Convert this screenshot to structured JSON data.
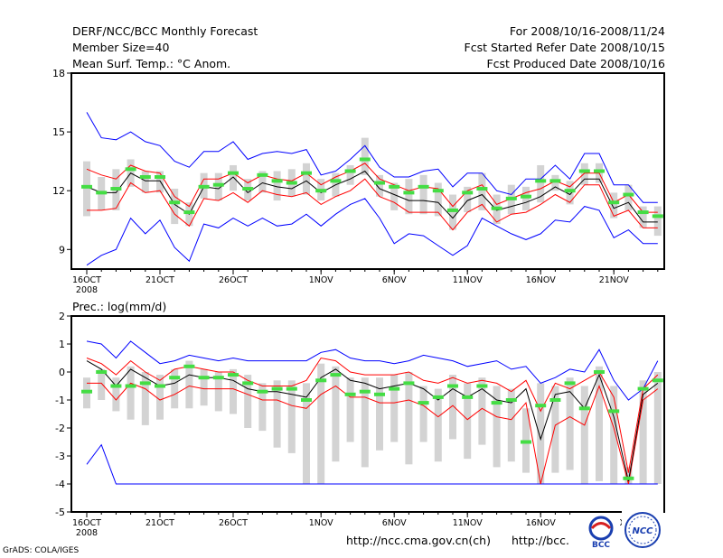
{
  "header": {
    "title": "DERF/NCC/BCC Monthly Forecast",
    "member_size": "Member Size=40",
    "variable": "Mean Surf. Temp.: °C Anom.",
    "period": "For 2008/10/16-2008/11/24",
    "refer_date": "Fcst Started Refer Date 2008/10/15",
    "produced_date": "Fcst Produced Date 2008/10/16"
  },
  "footer": {
    "url1": "http://ncc.cma.gov.cn(ch)",
    "url2": "http://bcc.",
    "grads": "GrADS: COLA/IGES",
    "logo1": "BCC",
    "logo2": "NCC"
  },
  "colors": {
    "envelope": "#0000ff",
    "spread": "#ff0000",
    "mean": "#000000",
    "marker": "#44dd44",
    "box": "#d3d3d3"
  },
  "chart_data": [
    {
      "type": "line",
      "title": "",
      "ylabel": "Mean Surf. Temp.: °C Anom.",
      "ylim": [
        8,
        18
      ],
      "yticks": [
        "9",
        "12",
        "15",
        "18"
      ],
      "day_index": [
        0,
        1,
        2,
        3,
        4,
        5,
        6,
        7,
        8,
        9,
        10,
        11,
        12,
        13,
        14,
        15,
        16,
        17,
        18,
        19,
        20,
        21,
        22,
        23,
        24,
        25,
        26,
        27,
        28,
        29,
        30,
        31,
        32,
        33,
        34,
        35,
        36,
        37,
        38,
        39
      ],
      "xtick_labels": [
        {
          "day": 0,
          "label": "16OCT",
          "sub": "2008"
        },
        {
          "day": 5,
          "label": "21OCT"
        },
        {
          "day": 10,
          "label": "26OCT"
        },
        {
          "day": 16,
          "label": "1NOV"
        },
        {
          "day": 21,
          "label": "6NOV"
        },
        {
          "day": 26,
          "label": "11NOV"
        },
        {
          "day": 31,
          "label": "16NOV"
        },
        {
          "day": 36,
          "label": "21NOV"
        }
      ],
      "series": [
        {
          "name": "max",
          "values": [
            16.0,
            14.7,
            14.6,
            15.0,
            14.5,
            14.3,
            13.5,
            13.2,
            14.0,
            14.0,
            14.5,
            13.6,
            13.9,
            14.0,
            13.9,
            14.1,
            12.8,
            13.0,
            13.6,
            14.3,
            13.2,
            12.7,
            12.7,
            13.0,
            13.1,
            12.2,
            12.9,
            12.9,
            12.0,
            11.8,
            12.6,
            12.6,
            13.3,
            12.6,
            13.9,
            13.9,
            12.3,
            12.3,
            11.4,
            11.4
          ]
        },
        {
          "name": "upper",
          "values": [
            13.1,
            12.8,
            12.6,
            13.3,
            13.0,
            12.9,
            11.7,
            11.2,
            12.6,
            12.6,
            12.9,
            12.4,
            12.8,
            12.6,
            12.5,
            12.9,
            12.3,
            12.7,
            13.0,
            13.4,
            12.6,
            12.3,
            12.0,
            12.2,
            12.1,
            11.2,
            12.0,
            12.3,
            11.3,
            11.6,
            11.9,
            12.1,
            12.5,
            12.2,
            12.9,
            12.9,
            11.4,
            11.8,
            10.9,
            10.9
          ]
        },
        {
          "name": "mean",
          "values": [
            12.2,
            11.9,
            11.9,
            12.9,
            12.5,
            12.5,
            11.3,
            10.8,
            12.2,
            12.1,
            12.7,
            11.9,
            12.4,
            12.2,
            12.1,
            12.5,
            11.9,
            12.3,
            12.6,
            13.0,
            12.1,
            11.8,
            11.5,
            11.5,
            11.4,
            10.6,
            11.5,
            11.8,
            11.0,
            11.2,
            11.4,
            11.7,
            12.2,
            11.8,
            12.6,
            12.6,
            11.1,
            11.4,
            10.4,
            10.4
          ]
        },
        {
          "name": "lower",
          "values": [
            11.0,
            11.0,
            11.1,
            12.4,
            11.9,
            12.0,
            10.8,
            10.2,
            11.6,
            11.5,
            11.9,
            11.4,
            12.0,
            11.8,
            11.7,
            11.9,
            11.3,
            11.7,
            12.0,
            12.6,
            11.7,
            11.4,
            10.9,
            10.9,
            10.9,
            10.0,
            10.9,
            11.3,
            10.4,
            10.8,
            10.9,
            11.3,
            11.8,
            11.4,
            12.3,
            12.3,
            10.7,
            11.0,
            10.1,
            10.1
          ]
        },
        {
          "name": "min",
          "values": [
            8.2,
            8.7,
            9.0,
            10.6,
            9.8,
            10.5,
            9.1,
            8.4,
            10.3,
            10.1,
            10.6,
            10.2,
            10.6,
            10.2,
            10.3,
            10.8,
            10.2,
            10.8,
            11.3,
            11.6,
            10.6,
            9.3,
            9.8,
            9.7,
            9.2,
            8.7,
            9.2,
            10.6,
            10.2,
            9.8,
            9.5,
            9.8,
            10.5,
            10.4,
            11.2,
            11.0,
            9.6,
            10.0,
            9.3,
            9.3
          ]
        },
        {
          "name": "median",
          "values": [
            12.2,
            11.9,
            12.1,
            13.1,
            12.7,
            12.7,
            11.4,
            10.9,
            12.2,
            12.3,
            12.9,
            12.1,
            12.8,
            12.5,
            12.4,
            12.9,
            12.0,
            12.5,
            13.0,
            13.6,
            12.4,
            12.2,
            11.9,
            12.2,
            12.0,
            11.0,
            11.9,
            12.1,
            11.1,
            11.6,
            11.7,
            12.5,
            12.5,
            12.0,
            13.0,
            13.0,
            11.4,
            11.8,
            10.9,
            10.7
          ]
        },
        {
          "name": "box_top",
          "values": [
            13.5,
            12.7,
            13.1,
            13.6,
            13.0,
            13.0,
            12.1,
            11.4,
            12.9,
            12.9,
            13.3,
            12.6,
            13.0,
            13.0,
            13.1,
            13.4,
            12.6,
            12.9,
            13.3,
            14.7,
            12.8,
            12.4,
            12.6,
            12.8,
            12.4,
            11.8,
            12.2,
            12.9,
            11.8,
            12.3,
            12.2,
            13.3,
            12.8,
            12.5,
            13.4,
            13.4,
            11.9,
            12.3,
            11.2,
            11.2
          ]
        },
        {
          "name": "box_bottom",
          "values": [
            10.7,
            11.0,
            11.0,
            12.2,
            11.9,
            11.9,
            10.3,
            10.2,
            11.6,
            11.5,
            12.0,
            11.5,
            11.9,
            11.5,
            11.7,
            11.8,
            11.5,
            11.7,
            12.3,
            12.8,
            11.7,
            11.0,
            10.8,
            10.8,
            10.7,
            10.0,
            10.9,
            11.0,
            10.3,
            10.8,
            11.0,
            11.4,
            12.0,
            11.3,
            12.3,
            12.4,
            10.6,
            11.0,
            10.1,
            9.7
          ]
        }
      ]
    },
    {
      "type": "line",
      "title": "",
      "ylabel": "Prec.: log(mm/d)",
      "ylim": [
        -5,
        2
      ],
      "yticks": [
        "-5",
        "-4",
        "-3",
        "-2",
        "-1",
        "0",
        "1",
        "2"
      ],
      "day_index": [
        0,
        1,
        2,
        3,
        4,
        5,
        6,
        7,
        8,
        9,
        10,
        11,
        12,
        13,
        14,
        15,
        16,
        17,
        18,
        19,
        20,
        21,
        22,
        23,
        24,
        25,
        26,
        27,
        28,
        29,
        30,
        31,
        32,
        33,
        34,
        35,
        36,
        37,
        38,
        39
      ],
      "xtick_labels": [
        {
          "day": 0,
          "label": "16OCT",
          "sub": "2008"
        },
        {
          "day": 5,
          "label": "21OCT"
        },
        {
          "day": 10,
          "label": "26OCT"
        },
        {
          "day": 16,
          "label": "1NOV"
        },
        {
          "day": 21,
          "label": "6NOV"
        },
        {
          "day": 26,
          "label": "11NOV"
        },
        {
          "day": 31,
          "label": "16NOV"
        },
        {
          "day": 36,
          "label": "21NOV"
        }
      ],
      "series": [
        {
          "name": "max",
          "values": [
            1.1,
            1.0,
            0.5,
            1.1,
            0.7,
            0.3,
            0.4,
            0.6,
            0.5,
            0.4,
            0.5,
            0.4,
            0.4,
            0.4,
            0.4,
            0.4,
            0.7,
            0.8,
            0.5,
            0.4,
            0.4,
            0.3,
            0.4,
            0.6,
            0.5,
            0.4,
            0.2,
            0.3,
            0.4,
            0.1,
            0.2,
            -0.4,
            -0.2,
            0.1,
            0.0,
            0.8,
            -0.3,
            -1.0,
            -0.6,
            0.4
          ]
        },
        {
          "name": "upper",
          "values": [
            0.5,
            0.3,
            -0.1,
            0.4,
            0.0,
            -0.3,
            0.1,
            0.2,
            0.1,
            0.0,
            0.0,
            -0.3,
            -0.5,
            -0.5,
            -0.5,
            -0.3,
            0.5,
            0.4,
            0.0,
            -0.1,
            -0.1,
            -0.1,
            0.0,
            -0.3,
            -0.4,
            -0.2,
            -0.4,
            -0.3,
            -0.4,
            -0.7,
            -0.3,
            -1.4,
            -0.4,
            -0.6,
            -0.3,
            0.0,
            -0.9,
            -3.6,
            -0.6,
            -0.1
          ]
        },
        {
          "name": "mean",
          "values": [
            0.4,
            0.1,
            -0.5,
            0.1,
            -0.2,
            -0.5,
            -0.4,
            -0.1,
            -0.2,
            -0.2,
            -0.3,
            -0.6,
            -0.7,
            -0.7,
            -0.8,
            -0.9,
            -0.2,
            0.1,
            -0.3,
            -0.4,
            -0.6,
            -0.5,
            -0.4,
            -0.6,
            -1.0,
            -0.6,
            -0.9,
            -0.6,
            -1.0,
            -1.1,
            -0.6,
            -2.4,
            -0.8,
            -0.7,
            -1.3,
            -0.1,
            -1.6,
            -3.9,
            -0.8,
            -0.4
          ]
        },
        {
          "name": "lower",
          "values": [
            -0.4,
            -0.4,
            -1.0,
            -0.4,
            -0.6,
            -1.0,
            -0.8,
            -0.5,
            -0.6,
            -0.6,
            -0.6,
            -0.8,
            -1.0,
            -1.0,
            -1.2,
            -1.3,
            -0.8,
            -0.5,
            -0.9,
            -0.9,
            -1.1,
            -1.1,
            -1.0,
            -1.2,
            -1.6,
            -1.2,
            -1.7,
            -1.3,
            -1.6,
            -1.7,
            -1.1,
            -4.0,
            -1.9,
            -1.6,
            -1.9,
            -0.5,
            -2.0,
            -4.0,
            -1.0,
            -0.6
          ]
        },
        {
          "name": "min",
          "values": [
            -3.3,
            -2.6,
            -4.0,
            -4.0,
            -4.0,
            -4.0,
            -4.0,
            -4.0,
            -4.0,
            -4.0,
            -4.0,
            -4.0,
            -4.0,
            -4.0,
            -4.0,
            -4.0,
            -4.0,
            -4.0,
            -4.0,
            -4.0,
            -4.0,
            -4.0,
            -4.0,
            -4.0,
            -4.0,
            -4.0,
            -4.0,
            -4.0,
            -4.0,
            -4.0,
            -4.0,
            -4.0,
            -4.0,
            -4.0,
            -4.0,
            -4.0,
            -4.0,
            -4.0,
            -4.0,
            -4.0
          ]
        },
        {
          "name": "median",
          "values": [
            -0.7,
            0.0,
            -0.5,
            -0.5,
            -0.4,
            -0.5,
            -0.2,
            0.2,
            -0.2,
            -0.2,
            -0.1,
            -0.4,
            -0.7,
            -0.6,
            -0.6,
            -1.0,
            -0.3,
            -0.1,
            -0.8,
            -0.7,
            -0.8,
            -0.6,
            -0.4,
            -1.1,
            -0.9,
            -0.5,
            -0.9,
            -0.5,
            -1.1,
            -1.0,
            -2.5,
            -1.2,
            -1.0,
            -0.4,
            -1.3,
            0.0,
            -1.4,
            -3.8,
            -0.6,
            -0.3
          ]
        },
        {
          "name": "box_top",
          "values": [
            -0.2,
            0.1,
            -0.2,
            0.2,
            0.0,
            -0.1,
            0.1,
            0.4,
            0.1,
            0.0,
            0.1,
            -0.1,
            -0.4,
            -0.3,
            -0.3,
            -0.4,
            0.3,
            0.2,
            -0.2,
            -0.2,
            -0.2,
            -0.1,
            0.0,
            -0.5,
            -0.6,
            -0.1,
            -0.4,
            -0.2,
            -0.5,
            -0.6,
            -1.3,
            -0.4,
            -0.5,
            -0.2,
            -0.5,
            0.2,
            -0.5,
            -3.4,
            -0.3,
            0.0
          ]
        },
        {
          "name": "box_bottom",
          "values": [
            -1.3,
            -1.0,
            -1.4,
            -1.7,
            -1.9,
            -1.7,
            -1.3,
            -1.3,
            -1.2,
            -1.4,
            -1.5,
            -2.0,
            -2.1,
            -2.7,
            -2.9,
            -4.0,
            -4.0,
            -3.2,
            -2.5,
            -3.4,
            -2.8,
            -2.5,
            -3.3,
            -2.5,
            -3.2,
            -2.4,
            -3.1,
            -2.6,
            -3.4,
            -3.2,
            -3.6,
            -4.0,
            -3.6,
            -3.5,
            -4.0,
            -3.9,
            -4.0,
            -4.0,
            -4.0,
            -4.0
          ]
        }
      ]
    }
  ]
}
